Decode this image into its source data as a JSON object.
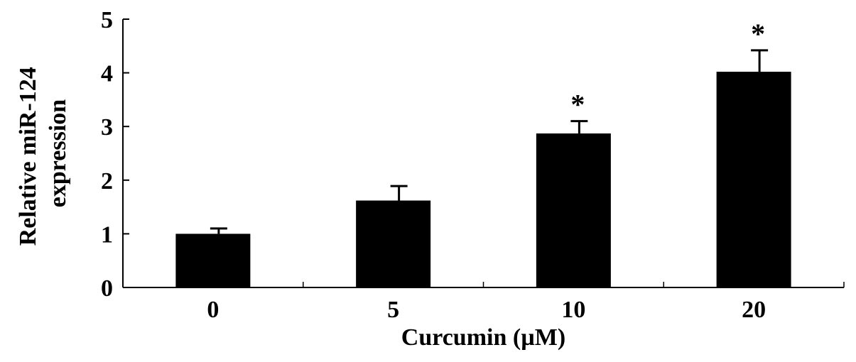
{
  "chart_data": {
    "type": "bar",
    "title": "",
    "xlabel": "Curcumin (µM)",
    "ylabel_lines": [
      "Relative miR-124",
      "expression"
    ],
    "categories": [
      "0",
      "5",
      "10",
      "20"
    ],
    "values": [
      1.0,
      1.62,
      2.87,
      4.02
    ],
    "error": [
      0.1,
      0.27,
      0.23,
      0.4
    ],
    "significance": [
      "",
      "",
      "*",
      "*"
    ],
    "ylim": [
      0,
      5
    ],
    "yticks": [
      "0",
      "1",
      "2",
      "3",
      "4",
      "5"
    ],
    "grid": false,
    "legend": "none",
    "bar_color": "#000000"
  }
}
